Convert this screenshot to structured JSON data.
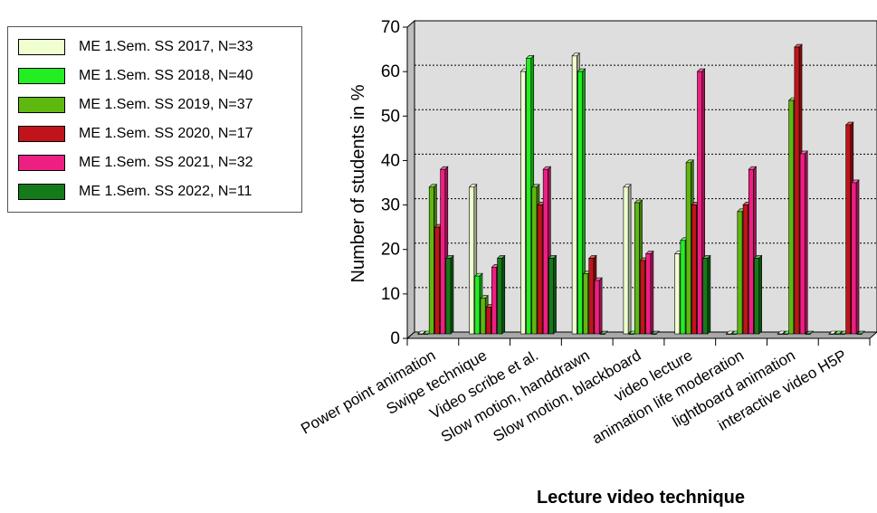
{
  "chart_data": {
    "type": "bar",
    "title": "",
    "xlabel": "Lecture video technique",
    "ylabel": "Number of students in %",
    "ylim": [
      0,
      70
    ],
    "yticks": [
      0,
      10,
      20,
      30,
      40,
      50,
      60,
      70
    ],
    "grid": true,
    "legend_position": "top-left",
    "categories": [
      "Power point animation",
      "Swipe technique",
      "Video scribe et al.",
      "Slow motion, handdrawn",
      "Slow motion, blackboard",
      "video lecture",
      "animation life moderation",
      "lightboard animation",
      "interactive video H5P"
    ],
    "series": [
      {
        "name": "ME 1.Sem. SS 2017, N=33",
        "color": "#efffcf",
        "values": [
          0,
          33,
          59,
          62.5,
          33,
          18,
          0,
          0,
          0
        ]
      },
      {
        "name": "ME 1.Sem. SS 2018, N=40",
        "color": "#22ee22",
        "values": [
          0,
          13,
          62,
          59,
          0,
          21,
          0,
          0,
          0
        ]
      },
      {
        "name": "ME 1.Sem. SS 2019, N=37",
        "color": "#5fb80f",
        "values": [
          33,
          8,
          33,
          13.5,
          29.5,
          38.5,
          27.5,
          52.5,
          0
        ]
      },
      {
        "name": "ME 1.Sem. SS 2020, N=17",
        "color": "#c0141a",
        "values": [
          24,
          6,
          29,
          17,
          16.5,
          29,
          29,
          64.5,
          47
        ]
      },
      {
        "name": "ME 1.Sem. SS 2021, N=32",
        "color": "#ee1f82",
        "values": [
          37,
          15,
          37,
          12,
          18,
          59,
          37,
          40.5,
          34
        ]
      },
      {
        "name": "ME 1.Sem. SS 2022, N=11",
        "color": "#157a19",
        "values": [
          17,
          17,
          17,
          0,
          0,
          17,
          17,
          0,
          0
        ]
      }
    ]
  }
}
